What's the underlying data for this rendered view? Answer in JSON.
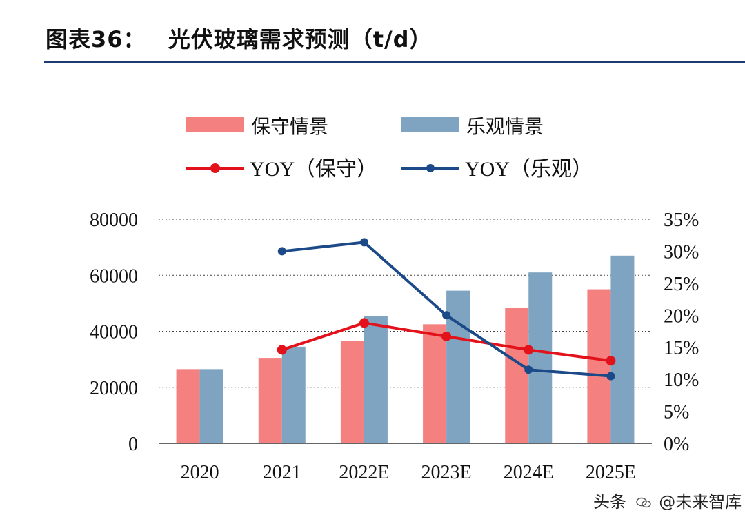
{
  "figure": {
    "title_prefix": "图表36：",
    "title_text": "光伏玻璃需求预测（t/d）"
  },
  "watermark": {
    "prefix": "头条",
    "handle": "@未来智库",
    "icon": "wechat-icon"
  },
  "colors": {
    "conservative_bar": "#f48080",
    "optimistic_bar": "#7fa4c1",
    "conservative_line": "#e3111a",
    "optimistic_line": "#1c4987",
    "title_rule": "#1f3b73",
    "grid": "#444444"
  },
  "chart_data": {
    "type": "bar",
    "title": "光伏玻璃需求预测（t/d）",
    "categories": [
      "2020",
      "2021",
      "2022E",
      "2023E",
      "2024E",
      "2025E"
    ],
    "series": [
      {
        "name": "保守情景",
        "kind": "bar",
        "axis": "left",
        "values": [
          26500,
          30500,
          36500,
          42500,
          48500,
          55000
        ]
      },
      {
        "name": "乐观情景",
        "kind": "bar",
        "axis": "left",
        "values": [
          26500,
          34500,
          45500,
          54500,
          61000,
          67000
        ]
      },
      {
        "name": "YOY（保守）",
        "kind": "line",
        "axis": "right",
        "values": [
          null,
          14.6,
          18.8,
          16.7,
          14.6,
          12.9
        ]
      },
      {
        "name": "YOY（乐观）",
        "kind": "line",
        "axis": "right",
        "values": [
          null,
          30.0,
          31.4,
          20.0,
          11.5,
          10.5
        ]
      }
    ],
    "left_axis": {
      "min": 0,
      "max": 80000,
      "ticks": [
        "0",
        "20000",
        "40000",
        "60000",
        "80000"
      ]
    },
    "right_axis": {
      "min": 0,
      "max": 35,
      "ticks": [
        "0%",
        "5%",
        "10%",
        "15%",
        "20%",
        "25%",
        "30%",
        "35%"
      ]
    },
    "grid": "dotted horizontal",
    "legend": "top"
  }
}
